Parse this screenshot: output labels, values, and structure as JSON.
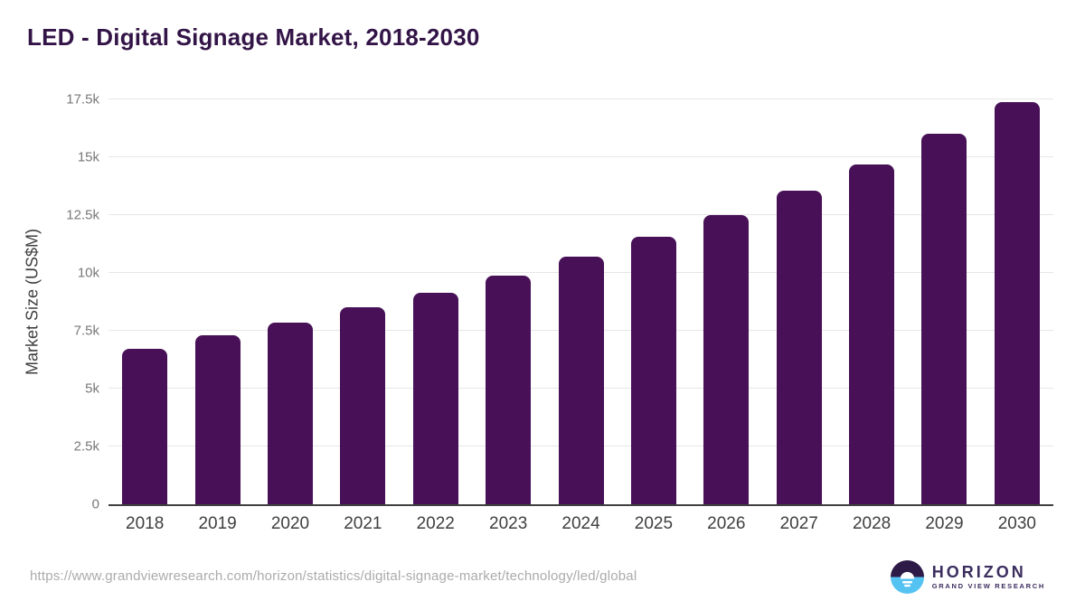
{
  "title": "LED - Digital Signage Market, 2018-2030",
  "chart_data": {
    "type": "bar",
    "title": "LED - Digital Signage Market, 2018-2030",
    "categories": [
      "2018",
      "2019",
      "2020",
      "2021",
      "2022",
      "2023",
      "2024",
      "2025",
      "2026",
      "2027",
      "2028",
      "2029",
      "2030"
    ],
    "values": [
      6700,
      7300,
      7850,
      8500,
      9150,
      9900,
      10700,
      11550,
      12500,
      13550,
      14700,
      16000,
      17400
    ],
    "xlabel": "",
    "ylabel": "Market Size (US$M)",
    "ylim": [
      0,
      17500
    ],
    "yticks": [
      {
        "label": "0",
        "value": 0
      },
      {
        "label": "2.5k",
        "value": 2500
      },
      {
        "label": "5k",
        "value": 5000
      },
      {
        "label": "7.5k",
        "value": 7500
      },
      {
        "label": "10k",
        "value": 10000
      },
      {
        "label": "12.5k",
        "value": 12500
      },
      {
        "label": "15k",
        "value": 15000
      },
      {
        "label": "17.5k",
        "value": 17500
      }
    ],
    "grid": "horizontal",
    "legend": "none",
    "bar_color": "#471057"
  },
  "colors": {
    "title": "#331447",
    "bar": "#471057",
    "grid": "#e6e6e6",
    "axis-line": "#3f3f3f",
    "axis-text": "#3f3f3f",
    "tick-text": "#787878",
    "url-text": "#ababab",
    "logo-purple": "#2d1a47",
    "logo-blue": "#55c3f2",
    "logo-text": "#3b2d5e"
  },
  "footer": {
    "source_url": "https://www.grandviewresearch.com/horizon/statistics/digital-signage-market/technology/led/global",
    "logo": {
      "name": "HORIZON",
      "tagline": "GRAND VIEW RESEARCH"
    }
  }
}
